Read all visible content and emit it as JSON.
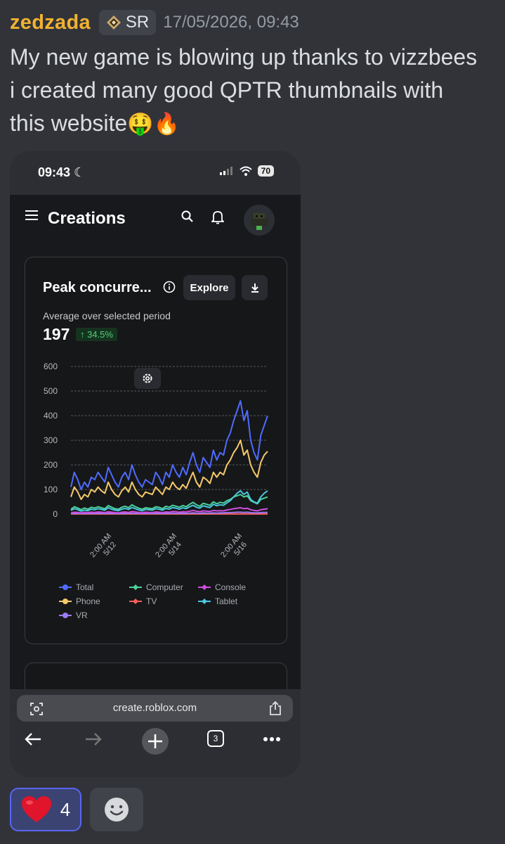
{
  "message": {
    "username": "zedzada",
    "tag": "SR",
    "timestamp": "17/05/2026, 09:43",
    "line1": "My new game is blowing up thanks to vizzbees",
    "line2": "i created many good QPTR thumbnails with",
    "line3": "this website",
    "emojis": "🤑🔥",
    "colors": {
      "username": "#f0b232",
      "background": "#323339"
    }
  },
  "phone": {
    "status": {
      "time": "09:43",
      "battery": "70"
    },
    "app": {
      "title": "Creations"
    },
    "card": {
      "title": "Peak concurre...",
      "explore_label": "Explore",
      "avg_label": "Average over selected period",
      "avg_value": "197",
      "delta": "↑ 34.5%"
    },
    "browser": {
      "url": "create.roblox.com",
      "tab_count": "3"
    }
  },
  "chart_data": {
    "type": "line",
    "title": "Peak concurre...",
    "ylim": [
      0,
      600
    ],
    "yticks": [
      "0",
      "100",
      "200",
      "300",
      "400",
      "500",
      "600"
    ],
    "xticks": [
      {
        "time": "2:00 AM",
        "date": "5/12"
      },
      {
        "time": "2:00 AM",
        "date": "5/14"
      },
      {
        "time": "2:00 AM",
        "date": "5/16"
      }
    ],
    "grid": true,
    "legend_position": "bottom",
    "x_start": "5/11 12:00 PM",
    "x_end": "5/17 9:00 AM",
    "series": [
      {
        "name": "Total",
        "color": "#4f6bff",
        "values": [
          110,
          170,
          140,
          100,
          130,
          110,
          150,
          140,
          170,
          150,
          130,
          190,
          160,
          130,
          110,
          150,
          170,
          140,
          200,
          160,
          130,
          110,
          140,
          130,
          120,
          170,
          150,
          120,
          170,
          150,
          200,
          170,
          150,
          190,
          160,
          210,
          250,
          200,
          170,
          230,
          210,
          190,
          260,
          220,
          250,
          240,
          300,
          330,
          380,
          420,
          460,
          380,
          420,
          300,
          250,
          220,
          320,
          360,
          400
        ]
      },
      {
        "name": "Phone",
        "color": "#f5c96a",
        "values": [
          70,
          110,
          90,
          60,
          80,
          70,
          100,
          90,
          110,
          95,
          85,
          130,
          100,
          80,
          70,
          95,
          110,
          90,
          130,
          100,
          80,
          70,
          90,
          85,
          80,
          110,
          95,
          80,
          110,
          100,
          130,
          110,
          100,
          120,
          105,
          140,
          170,
          130,
          110,
          150,
          140,
          125,
          170,
          150,
          170,
          160,
          200,
          220,
          250,
          270,
          300,
          240,
          260,
          200,
          170,
          150,
          210,
          240,
          255
        ]
      },
      {
        "name": "Computer",
        "color": "#4bd39a",
        "values": [
          20,
          30,
          25,
          18,
          25,
          20,
          28,
          25,
          30,
          26,
          22,
          35,
          28,
          22,
          20,
          28,
          32,
          26,
          38,
          30,
          24,
          20,
          26,
          24,
          22,
          30,
          28,
          22,
          32,
          28,
          36,
          32,
          28,
          35,
          30,
          40,
          48,
          38,
          32,
          44,
          40,
          36,
          50,
          42,
          48,
          45,
          55,
          60,
          70,
          75,
          80,
          70,
          75,
          55,
          48,
          42,
          60,
          65,
          70
        ]
      },
      {
        "name": "Console",
        "color": "#d04fe0",
        "values": [
          5,
          8,
          7,
          5,
          7,
          6,
          8,
          7,
          9,
          8,
          6,
          10,
          8,
          6,
          5,
          8,
          9,
          7,
          11,
          9,
          7,
          6,
          8,
          7,
          6,
          9,
          8,
          6,
          9,
          8,
          11,
          10,
          8,
          10,
          9,
          12,
          15,
          12,
          10,
          13,
          12,
          11,
          15,
          13,
          14,
          13,
          17,
          19,
          22,
          24,
          26,
          22,
          24,
          18,
          15,
          13,
          18,
          20,
          22
        ]
      },
      {
        "name": "TV",
        "color": "#ff5d5d",
        "values": [
          1,
          1,
          1,
          1,
          1,
          1,
          1,
          1,
          1,
          1,
          1,
          1,
          1,
          1,
          1,
          1,
          1,
          1,
          1,
          1,
          1,
          1,
          1,
          1,
          1,
          1,
          1,
          1,
          1,
          1,
          1,
          1,
          1,
          1,
          1,
          1,
          1,
          1,
          1,
          1,
          1,
          1,
          1,
          1,
          1,
          1,
          1,
          1,
          1,
          1,
          1,
          1,
          1,
          1,
          1,
          1,
          1,
          1,
          1
        ]
      },
      {
        "name": "Tablet",
        "color": "#4bc7e0",
        "values": [
          15,
          22,
          18,
          12,
          16,
          14,
          20,
          18,
          22,
          19,
          16,
          26,
          20,
          16,
          14,
          20,
          23,
          19,
          27,
          22,
          17,
          14,
          19,
          18,
          16,
          22,
          20,
          16,
          23,
          20,
          27,
          24,
          20,
          26,
          22,
          30,
          36,
          28,
          24,
          34,
          30,
          27,
          40,
          34,
          38,
          36,
          46,
          55,
          70,
          85,
          95,
          80,
          90,
          60,
          50,
          45,
          70,
          85,
          95
        ]
      },
      {
        "name": "VR",
        "color": "#9c7bf5",
        "values": [
          2,
          3,
          3,
          2,
          3,
          2,
          3,
          3,
          3,
          3,
          2,
          4,
          3,
          2,
          2,
          3,
          3,
          3,
          4,
          3,
          3,
          2,
          3,
          3,
          2,
          3,
          3,
          2,
          3,
          3,
          4,
          3,
          3,
          4,
          3,
          4,
          5,
          4,
          3,
          5,
          4,
          4,
          5,
          4,
          5,
          5,
          6,
          6,
          7,
          8,
          8,
          7,
          8,
          6,
          5,
          5,
          6,
          7,
          7
        ]
      }
    ]
  }
}
